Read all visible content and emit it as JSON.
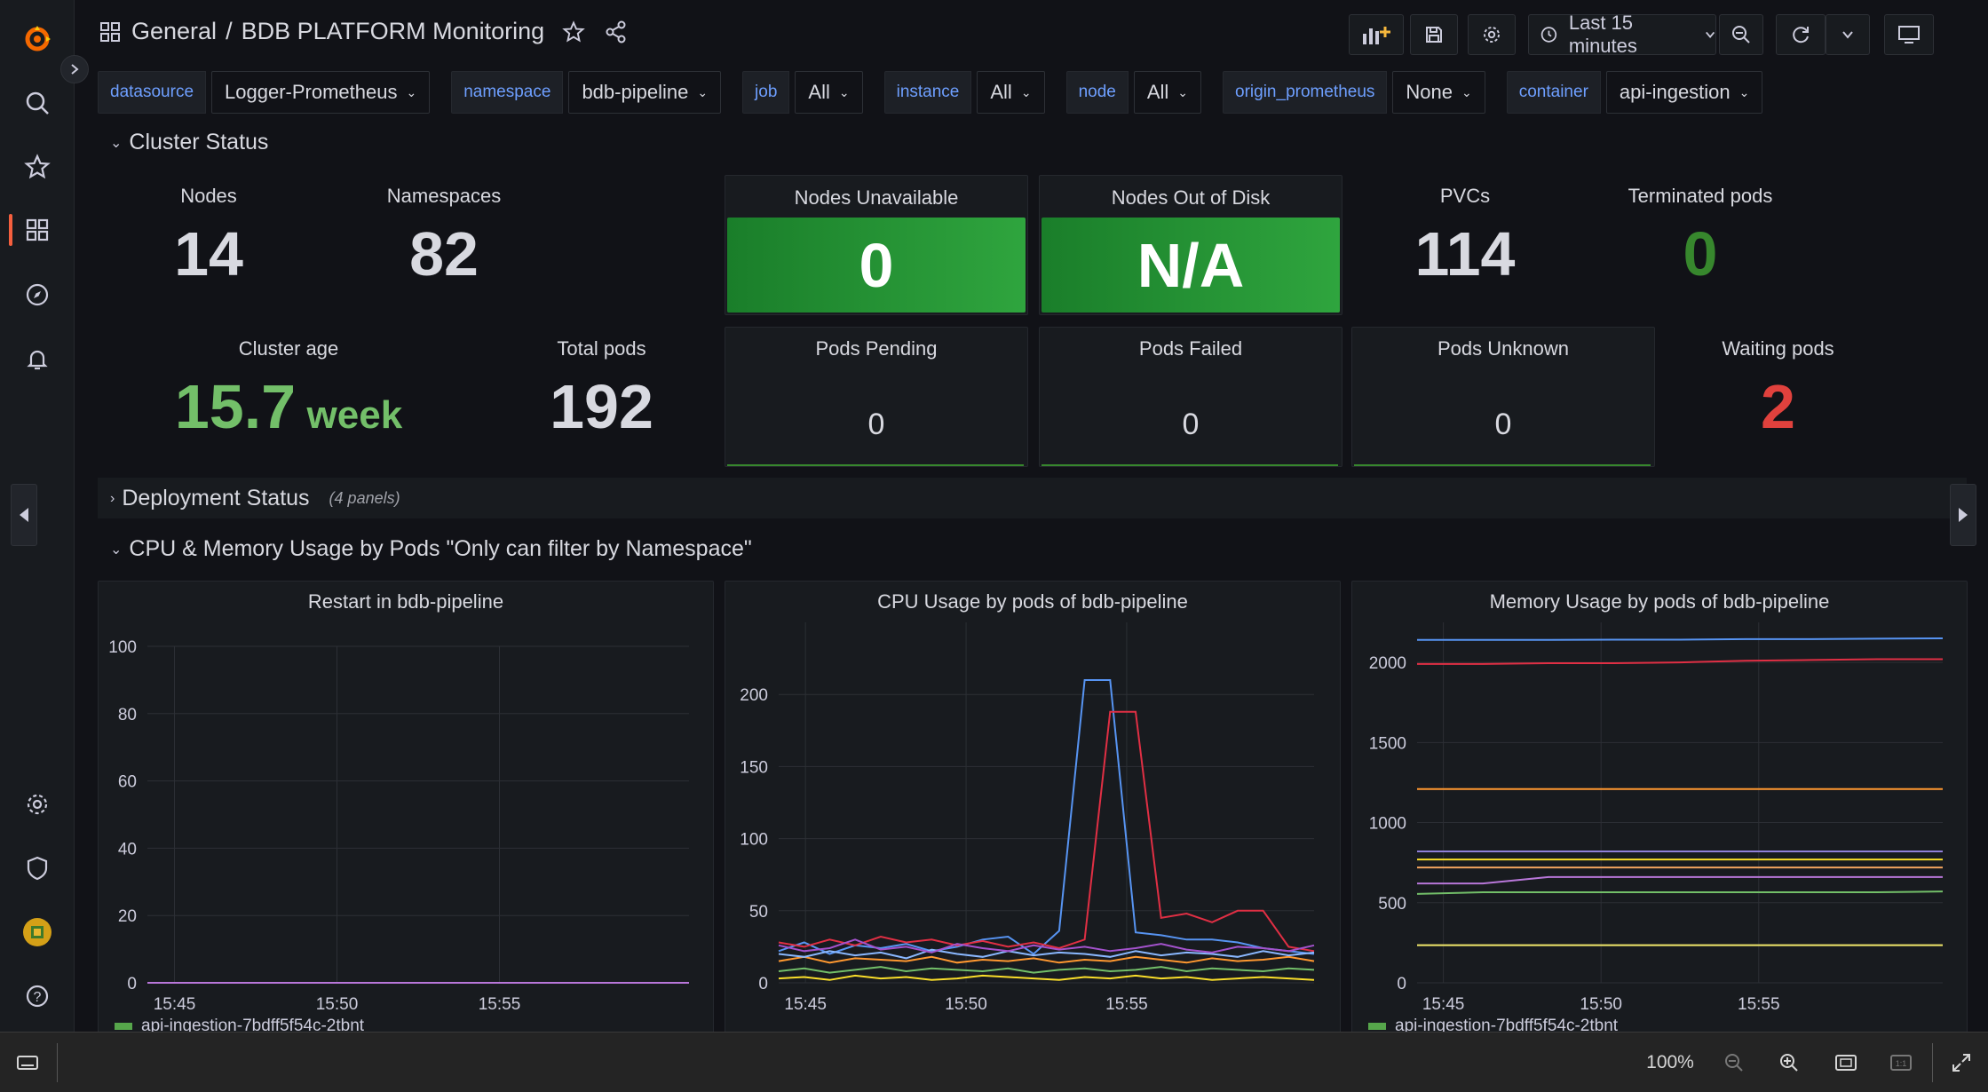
{
  "breadcrumb": {
    "folder": "General",
    "separator": "/",
    "dashboard": "BDB PLATFORM Monitoring"
  },
  "toolbar": {
    "time_range": "Last 15 minutes"
  },
  "variables": [
    {
      "label": "datasource",
      "value": "Logger-Prometheus"
    },
    {
      "label": "namespace",
      "value": "bdb-pipeline"
    },
    {
      "label": "job",
      "value": "All"
    },
    {
      "label": "instance",
      "value": "All"
    },
    {
      "label": "node",
      "value": "All"
    },
    {
      "label": "origin_prometheus",
      "value": "None"
    },
    {
      "label": "container",
      "value": "api-ingestion"
    }
  ],
  "rows": {
    "cluster": "Cluster Status",
    "deployment": "Deployment Status",
    "deployment_count": "(4 panels)",
    "cpu_mem": "CPU & Memory Usage by Pods \"Only can filter by Namespace\""
  },
  "stats": {
    "nodes": {
      "title": "Nodes",
      "value": "14"
    },
    "namespaces": {
      "title": "Namespaces",
      "value": "82"
    },
    "nodes_unavailable": {
      "title": "Nodes Unavailable",
      "value": "0"
    },
    "nodes_out_of_disk": {
      "title": "Nodes Out of Disk",
      "value": "N/A"
    },
    "pvcs": {
      "title": "PVCs",
      "value": "114"
    },
    "terminated_pods": {
      "title": "Terminated pods",
      "value": "0"
    },
    "cluster_age": {
      "title": "Cluster age",
      "value": "15.7",
      "unit": "week"
    },
    "total_pods": {
      "title": "Total pods",
      "value": "192"
    },
    "pods_pending": {
      "title": "Pods Pending",
      "value": "0"
    },
    "pods_failed": {
      "title": "Pods Failed",
      "value": "0"
    },
    "pods_unknown": {
      "title": "Pods Unknown",
      "value": "0"
    },
    "waiting_pods": {
      "title": "Waiting pods",
      "value": "2"
    }
  },
  "colors": {
    "green": "#73bf69",
    "red": "#f2495c",
    "accent": "#f55f3e",
    "link": "#6e9fff"
  },
  "chart_data": [
    {
      "type": "line",
      "title": "Restart in bdb-pipeline",
      "x_ticks": [
        "15:45",
        "15:50",
        "15:55"
      ],
      "ylim": [
        0,
        100
      ],
      "y_ticks": [
        0,
        20,
        40,
        60,
        80,
        100
      ],
      "series": [
        {
          "name": "api-ingestion-7bdff5f54c-2tbnt",
          "color": "#56a64b",
          "values": [
            0,
            0,
            0,
            0,
            0,
            0,
            0,
            0,
            0,
            0
          ]
        },
        {
          "color": "#b877d9",
          "values": [
            0,
            0,
            0,
            0,
            0,
            0,
            0,
            0,
            0,
            0
          ]
        }
      ],
      "legend": [
        "api-ingestion-7bdff5f54c-2tbnt"
      ]
    },
    {
      "type": "line",
      "title": "CPU Usage by pods of bdb-pipeline",
      "x_ticks": [
        "15:45",
        "15:50",
        "15:55"
      ],
      "ylim": [
        0,
        250
      ],
      "y_ticks": [
        0,
        50,
        100,
        150,
        200
      ],
      "series": [
        {
          "color": "#5794f2",
          "values": [
            22,
            28,
            20,
            26,
            24,
            27,
            22,
            25,
            30,
            32,
            20,
            36,
            210,
            210,
            35,
            33,
            30,
            30,
            28,
            24,
            22,
            20
          ]
        },
        {
          "color": "#e02f44",
          "values": [
            28,
            25,
            30,
            26,
            32,
            28,
            30,
            26,
            29,
            25,
            28,
            24,
            30,
            188,
            188,
            45,
            48,
            42,
            50,
            50,
            25,
            22
          ]
        },
        {
          "color": "#ff9830",
          "values": [
            15,
            18,
            14,
            17,
            16,
            15,
            18,
            14,
            16,
            15,
            17,
            14,
            16,
            15,
            18,
            16,
            14,
            17,
            15,
            16,
            18,
            15
          ]
        },
        {
          "color": "#73bf69",
          "values": [
            8,
            10,
            7,
            9,
            11,
            8,
            10,
            9,
            8,
            10,
            7,
            9,
            10,
            8,
            9,
            11,
            8,
            10,
            9,
            8,
            10,
            9
          ]
        },
        {
          "color": "#fade2a",
          "values": [
            3,
            4,
            2,
            5,
            3,
            4,
            2,
            3,
            5,
            4,
            3,
            2,
            4,
            3,
            5,
            3,
            4,
            2,
            3,
            4,
            3,
            2
          ]
        },
        {
          "color": "#8ab8ff",
          "values": [
            20,
            18,
            22,
            19,
            21,
            17,
            23,
            20,
            18,
            22,
            19,
            21,
            20,
            18,
            22,
            19,
            21,
            20,
            18,
            22,
            19,
            21
          ]
        },
        {
          "color": "#a352cc",
          "values": [
            26,
            22,
            24,
            30,
            23,
            25,
            21,
            27,
            24,
            22,
            26,
            23,
            25,
            22,
            24,
            27,
            23,
            21,
            25,
            24,
            22,
            26
          ]
        }
      ]
    },
    {
      "type": "line",
      "title": "Memory Usage by pods of bdb-pipeline",
      "x_ticks": [
        "15:45",
        "15:50",
        "15:55"
      ],
      "ylim": [
        0,
        2250
      ],
      "y_ticks": [
        0,
        500,
        1000,
        1500,
        2000
      ],
      "series": [
        {
          "color": "#5794f2",
          "values": [
            2140,
            2140,
            2140,
            2142,
            2142,
            2145,
            2145,
            2148,
            2150
          ]
        },
        {
          "color": "#e02f44",
          "values": [
            1990,
            1990,
            1995,
            1995,
            2000,
            2010,
            2015,
            2020,
            2020
          ]
        },
        {
          "color": "#ff9830",
          "values": [
            1210,
            1210,
            1210,
            1210,
            1210,
            1210,
            1210,
            1210,
            1210
          ]
        },
        {
          "color": "#8f7fd9",
          "values": [
            820,
            820,
            820,
            820,
            820,
            820,
            820,
            820,
            820
          ]
        },
        {
          "color": "#fade2a",
          "values": [
            770,
            770,
            770,
            770,
            770,
            770,
            770,
            770,
            770
          ]
        },
        {
          "color": "#f2a35e",
          "values": [
            720,
            720,
            720,
            720,
            720,
            720,
            720,
            720,
            720
          ]
        },
        {
          "color": "#b877d9",
          "values": [
            620,
            620,
            660,
            660,
            660,
            660,
            660,
            660,
            660
          ]
        },
        {
          "color": "#73bf69",
          "values": [
            555,
            565,
            565,
            565,
            565,
            565,
            565,
            565,
            570
          ]
        },
        {
          "color": "#f2e86b",
          "values": [
            235,
            235,
            235,
            235,
            235,
            235,
            235,
            235,
            235
          ]
        }
      ],
      "legend": [
        "api-ingestion-7bdff5f54c-2tbnt"
      ]
    }
  ],
  "statusbar": {
    "zoom": "100%"
  }
}
